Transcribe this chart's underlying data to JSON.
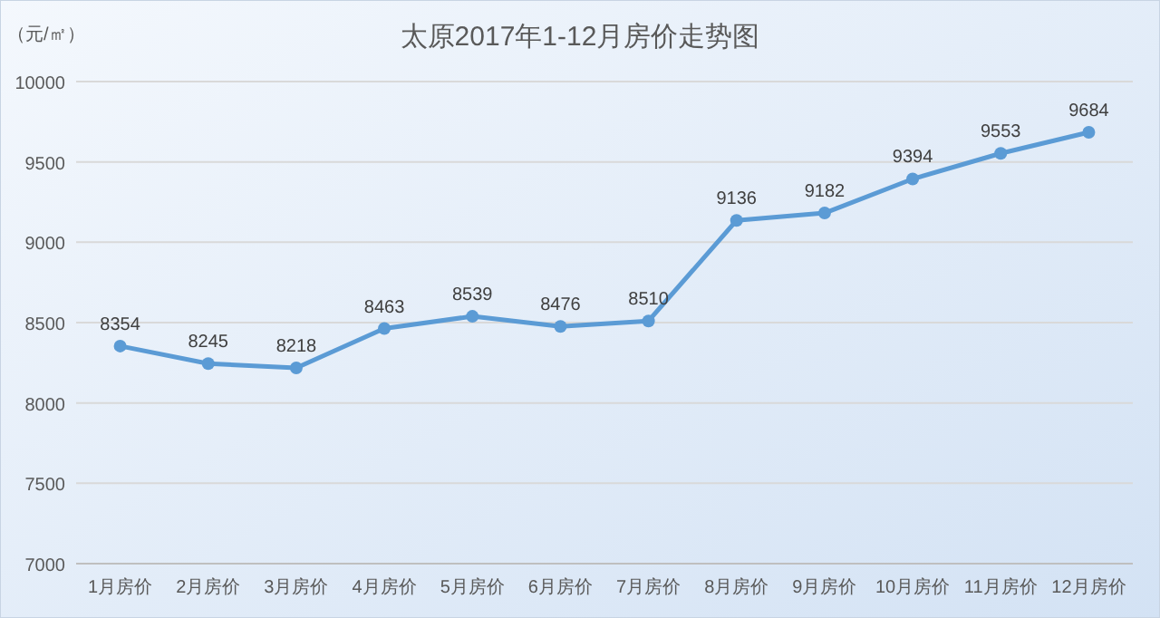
{
  "chart_data": {
    "type": "line",
    "title": "太原2017年1-12月房价走势图",
    "ylabel": "（元/㎡）",
    "categories": [
      "1月房价",
      "2月房价",
      "3月房价",
      "4月房价",
      "5月房价",
      "6月房价",
      "7月房价",
      "8月房价",
      "9月房价",
      "10月房价",
      "11月房价",
      "12月房价"
    ],
    "series": [
      {
        "color": "#5b9bd5",
        "values": [
          8354,
          8245,
          8218,
          8463,
          8539,
          8476,
          8510,
          9136,
          9182,
          9394,
          9553,
          9684
        ]
      }
    ],
    "ylim": [
      7000,
      10000
    ],
    "yticks": [
      7000,
      7500,
      8000,
      8500,
      9000,
      9500,
      10000
    ],
    "grid": "y",
    "marker": "circle",
    "line_style": "solid",
    "data_labels": true
  }
}
